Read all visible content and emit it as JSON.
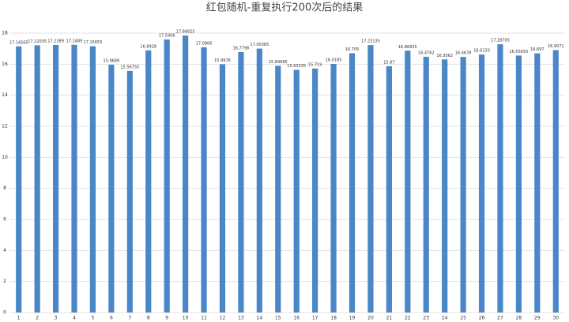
{
  "chart_data": {
    "type": "bar",
    "title": "红包随机-重复执行200次后的结果",
    "categories": [
      "1",
      "2",
      "3",
      "4",
      "5",
      "6",
      "7",
      "8",
      "9",
      "10",
      "11",
      "12",
      "13",
      "14",
      "15",
      "16",
      "17",
      "18",
      "19",
      "20",
      "21",
      "22",
      "23",
      "24",
      "25",
      "26",
      "27",
      "28",
      "29",
      "30"
    ],
    "values": [
      17.14565,
      17.22035,
      17.2389,
      17.2489,
      17.15655,
      15.9689,
      15.56755,
      16.8928,
      17.5906,
      17.84825,
      17.0866,
      15.9976,
      16.7798,
      17.00385,
      15.89685,
      15.63335,
      15.719,
      16.0185,
      16.705,
      17.23135,
      15.87,
      16.86835,
      16.4762,
      16.3062,
      16.4678,
      16.6233,
      17.28705,
      16.55655,
      16.697,
      16.9071
    ],
    "color": "#4a86c8",
    "ylim": [
      0,
      18
    ],
    "yticks": [
      0,
      2,
      4,
      6,
      8,
      10,
      12,
      14,
      16,
      18
    ],
    "grid": true
  }
}
